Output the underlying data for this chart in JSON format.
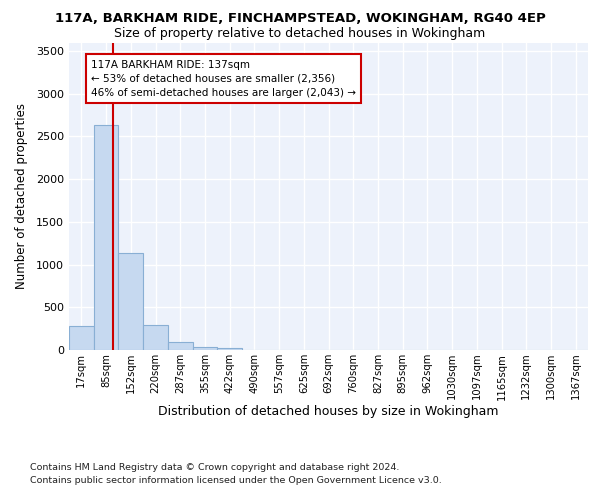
{
  "title1": "117A, BARKHAM RIDE, FINCHAMPSTEAD, WOKINGHAM, RG40 4EP",
  "title2": "Size of property relative to detached houses in Wokingham",
  "xlabel": "Distribution of detached houses by size in Wokingham",
  "ylabel": "Number of detached properties",
  "bin_labels": [
    "17sqm",
    "85sqm",
    "152sqm",
    "220sqm",
    "287sqm",
    "355sqm",
    "422sqm",
    "490sqm",
    "557sqm",
    "625sqm",
    "692sqm",
    "760sqm",
    "827sqm",
    "895sqm",
    "962sqm",
    "1030sqm",
    "1097sqm",
    "1165sqm",
    "1232sqm",
    "1300sqm",
    "1367sqm"
  ],
  "bar_heights": [
    280,
    2630,
    1140,
    290,
    90,
    35,
    20,
    0,
    0,
    0,
    0,
    0,
    0,
    0,
    0,
    0,
    0,
    0,
    0,
    0,
    0
  ],
  "bar_color": "#c6d9f0",
  "bar_edge_color": "#89afd4",
  "annotation_text": "117A BARKHAM RIDE: 137sqm\n← 53% of detached houses are smaller (2,356)\n46% of semi-detached houses are larger (2,043) →",
  "annotation_box_color": "white",
  "annotation_box_edge": "#cc0000",
  "red_line_color": "#cc0000",
  "ylim": [
    0,
    3600
  ],
  "yticks": [
    0,
    500,
    1000,
    1500,
    2000,
    2500,
    3000,
    3500
  ],
  "footnote1": "Contains HM Land Registry data © Crown copyright and database right 2024.",
  "footnote2": "Contains public sector information licensed under the Open Government Licence v3.0.",
  "background_color": "#edf2fb",
  "grid_color": "#ffffff",
  "fig_bg": "#ffffff"
}
